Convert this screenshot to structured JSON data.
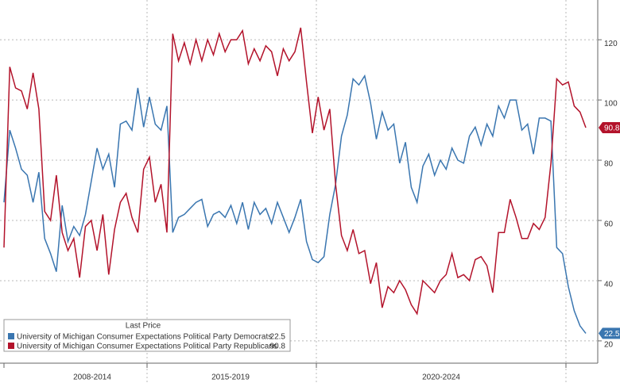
{
  "chart_data": {
    "type": "line",
    "legend_title": "Last Price",
    "periods": [
      "2008-2014",
      "2015-2019",
      "2020-2024"
    ],
    "ylim": [
      12.6,
      133.2
    ],
    "yticks": [
      20,
      40,
      60,
      80,
      100,
      120
    ],
    "grid": true,
    "series": [
      {
        "name": "University of Michigan Consumer Expectations Political Party Democrats",
        "color": "#3a76b0",
        "last_value": 22.5,
        "values": [
          66,
          90,
          84,
          77,
          75,
          66,
          76,
          54,
          49,
          43,
          65,
          53,
          58,
          55,
          62,
          73,
          84,
          77,
          82,
          71,
          92,
          93,
          90,
          104,
          91,
          101,
          92,
          90,
          98,
          56,
          61,
          62,
          64,
          66,
          67,
          58,
          62,
          63,
          61,
          65,
          59,
          66,
          57,
          66,
          62,
          64,
          59,
          66,
          61,
          56,
          61,
          67,
          53,
          47,
          46,
          48,
          62,
          72,
          88,
          95,
          107,
          105,
          108,
          99,
          87,
          96,
          90,
          92,
          79,
          86,
          71,
          66,
          78,
          82,
          75,
          80,
          77,
          84,
          80,
          79,
          88,
          91,
          85,
          92,
          88,
          98,
          94,
          100,
          100,
          90,
          92,
          82,
          94,
          94,
          93,
          51,
          49,
          38,
          30,
          25,
          22.5
        ]
      },
      {
        "name": "University of Michigan Consumer Expectations Political Party Republicans",
        "color": "#b3132b",
        "last_value": 90.8,
        "values": [
          51,
          111,
          104,
          103,
          97,
          109,
          97,
          63,
          60,
          75,
          56,
          50,
          54,
          41,
          58,
          60,
          50,
          62,
          42,
          57,
          66,
          69,
          61,
          56,
          77,
          81,
          66,
          72,
          56,
          122,
          113,
          119,
          112,
          120,
          113,
          120,
          115,
          122,
          116,
          120,
          120,
          123,
          112,
          117,
          113,
          118,
          116,
          108,
          117,
          113,
          116,
          124,
          106,
          89,
          101,
          90,
          97,
          72,
          55,
          50,
          57,
          49,
          50,
          39,
          46,
          31,
          38,
          36,
          40,
          37,
          32,
          29,
          40,
          38,
          36,
          40,
          42,
          49,
          41,
          42,
          40,
          47,
          48,
          45,
          36,
          56,
          56,
          67,
          61,
          54,
          54,
          59,
          57,
          61,
          79,
          107,
          105,
          106,
          98,
          96,
          90.8
        ]
      }
    ]
  }
}
